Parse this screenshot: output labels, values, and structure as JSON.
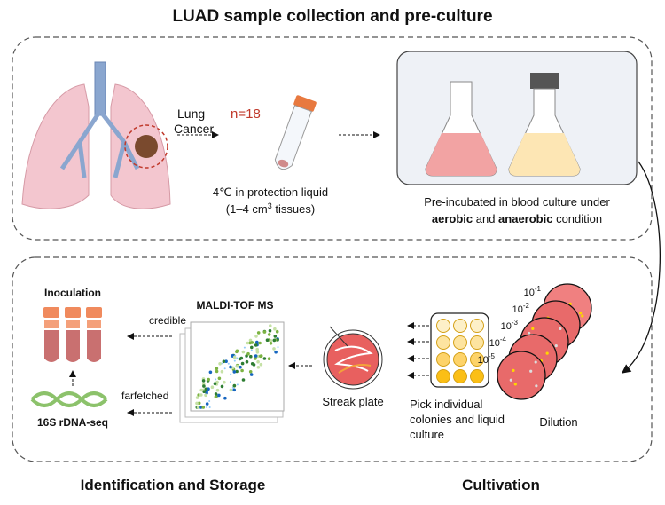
{
  "top_section": {
    "title": "LUAD sample collection and pre-culture",
    "lung_label_1": "Lung",
    "lung_label_2": "Cancer",
    "sample_count": "n=18",
    "storage_line_1": "4℃ in protection liquid",
    "storage_line_2_prefix": "(1–4 cm",
    "storage_line_2_sup": "3",
    "storage_line_2_suffix": " tissues)",
    "preincubation_line_1": "Pre-incubated in blood culture under",
    "preincubation_aerobic": "aerobic",
    "preincubation_and": " and ",
    "preincubation_anaerobic": "anaerobic",
    "preincubation_condition": " condition"
  },
  "bottom_section": {
    "identification_title": "Identification and Storage",
    "cultivation_title": "Cultivation",
    "inoculation": "Inoculation",
    "sequencing": "16S rDNA-seq",
    "maldi": "MALDI-TOF MS",
    "credible": "credible",
    "farfetched": "farfetched",
    "streak_plate": "Streak plate",
    "pick_line_1": "Pick individual",
    "pick_line_2": "colonies and liquid",
    "pick_line_3": "culture",
    "dilution": "Dilution",
    "dilution_levels": [
      {
        "base": "10",
        "exp": "-1"
      },
      {
        "base": "10",
        "exp": "-2"
      },
      {
        "base": "10",
        "exp": "-3"
      },
      {
        "base": "10",
        "exp": "-4"
      },
      {
        "base": "10",
        "exp": "-5"
      }
    ]
  },
  "colors": {
    "accent_red": "#c0392b",
    "lung_pink": "#f3c6cf",
    "blood_culture": "#f2a3a3",
    "anaerobic_culture": "#fde6b4",
    "plate_red": "#e8605f",
    "dna_green": "#8cc26b"
  }
}
